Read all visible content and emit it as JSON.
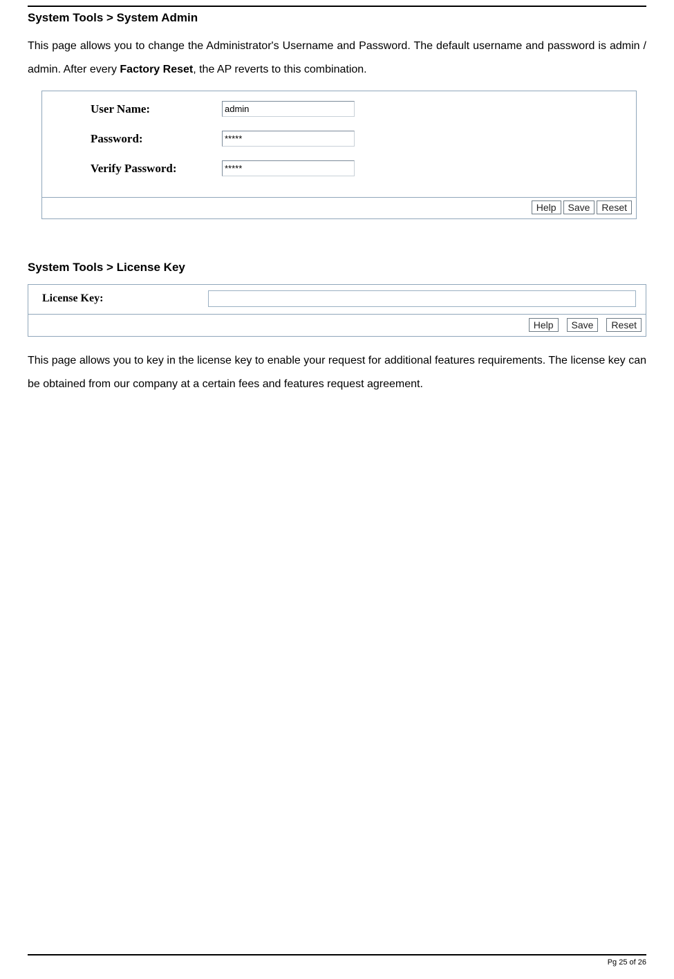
{
  "section1": {
    "heading": "System Tools > System Admin",
    "paragraph_parts": {
      "p1a": "This page allows you to change the Administrator's Username and Password. The default username and password is admin / admin. After every ",
      "bold": "Factory Reset",
      "p1b": ", the AP reverts to this combination."
    },
    "form": {
      "username_label": "User Name:",
      "username_value": "admin",
      "password_label": "Password:",
      "password_value": "*****",
      "verify_label": "Verify Password:",
      "verify_value": "*****"
    },
    "buttons": {
      "help": "Help",
      "save": "Save",
      "reset": "Reset"
    }
  },
  "section2": {
    "heading": "System Tools > License Key",
    "form": {
      "license_label": "License Key:",
      "license_value": ""
    },
    "buttons": {
      "help": "Help",
      "save": "Save",
      "reset": "Reset"
    },
    "paragraph": "This page allows you to key in the license key to enable your request for additional features requirements. The license key can be obtained from our company at a certain fees and features request agreement."
  },
  "footer": {
    "page": "Pg 25 of 26"
  }
}
